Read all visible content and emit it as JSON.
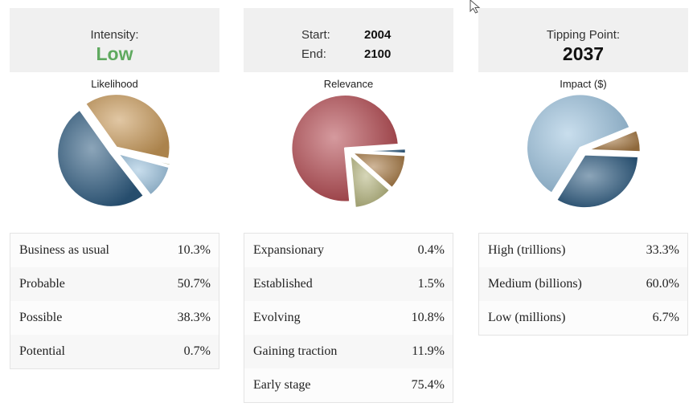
{
  "intensity": {
    "label": "Intensity:",
    "value": "Low"
  },
  "range": {
    "start_label": "Start:",
    "start_value": "2004",
    "end_label": "End:",
    "end_value": "2100"
  },
  "tipping": {
    "label": "Tipping Point:",
    "value": "2037"
  },
  "colors": {
    "low_green": "#5fa95f",
    "header_bg": "#f0f0f0"
  },
  "chart_data": [
    {
      "type": "pie",
      "title": "Likelihood",
      "slices": [
        {
          "name": "Business as usual",
          "value": 10.3,
          "display": "10.3%",
          "color": "#9dc3df"
        },
        {
          "name": "Probable",
          "value": 50.7,
          "display": "50.7%",
          "color": "#2d5b80"
        },
        {
          "name": "Possible",
          "value": 38.3,
          "display": "38.3%",
          "color": "#c99a59"
        },
        {
          "name": "Potential",
          "value": 0.7,
          "display": "0.7%",
          "color": "#b9b784"
        }
      ]
    },
    {
      "type": "pie",
      "title": "Relevance",
      "slices": [
        {
          "name": "Expansionary",
          "value": 0.4,
          "display": "0.4%",
          "color": "#9dc3df"
        },
        {
          "name": "Established",
          "value": 1.5,
          "display": "1.5%",
          "color": "#2d5b80"
        },
        {
          "name": "Evolving",
          "value": 10.8,
          "display": "10.8%",
          "color": "#a77a45"
        },
        {
          "name": "Gaining traction",
          "value": 11.9,
          "display": "11.9%",
          "color": "#b5b57e"
        },
        {
          "name": "Early stage",
          "value": 75.4,
          "display": "75.4%",
          "color": "#b2474e"
        }
      ]
    },
    {
      "type": "pie",
      "title": "Impact ($)",
      "slices": [
        {
          "name": "High (trillions)",
          "value": 33.3,
          "display": "33.3%",
          "color": "#2d5b80"
        },
        {
          "name": "Medium (billions)",
          "value": 60.0,
          "display": "60.0%",
          "color": "#9dc3df"
        },
        {
          "name": "Low (millions)",
          "value": 6.7,
          "display": "6.7%",
          "color": "#a77a45"
        }
      ]
    }
  ]
}
